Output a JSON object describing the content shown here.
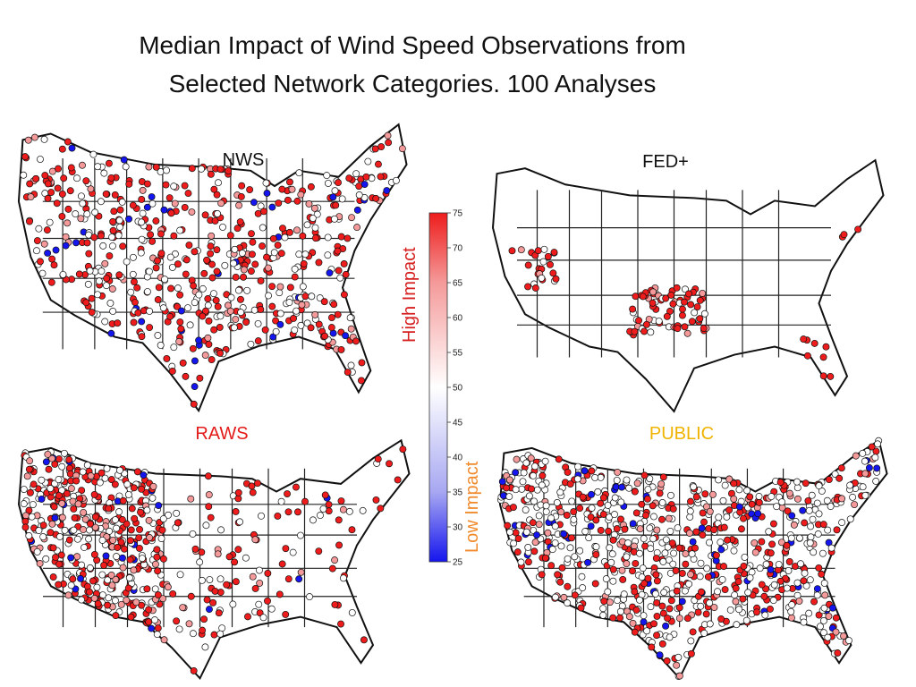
{
  "title": {
    "line1": "Median Impact of  Wind Speed Observations from",
    "line2": "Selected Network Categories. 100 Analyses"
  },
  "colors": {
    "high": "#ee1c1c",
    "mid_high": "#f59a9a",
    "neutral": "#ffffff",
    "mid_low": "#a7a7f2",
    "low": "#1515ee",
    "high_label": "#d62020",
    "low_label": "#f08a2c",
    "public_label": "#f0b400",
    "raws_label": "#e31b1b"
  },
  "chart_data": [
    {
      "type": "scatter",
      "map": "continental-us",
      "panel": "NWS",
      "label": "NWS",
      "station_density": "high",
      "dominant_impact": "high",
      "impact_mix": {
        "high": 0.55,
        "mid_high": 0.1,
        "neutral": 0.3,
        "low": 0.05
      }
    },
    {
      "type": "scatter",
      "map": "continental-us",
      "panel": "FED+",
      "label": "FED+",
      "station_density": "sparse",
      "dominant_impact": "high",
      "impact_mix": {
        "high": 0.65,
        "mid_high": 0.1,
        "neutral": 0.25,
        "low": 0.0
      }
    },
    {
      "type": "scatter",
      "map": "continental-us",
      "panel": "RAWS",
      "label": "RAWS",
      "station_density": "high-west",
      "dominant_impact": "high",
      "impact_mix": {
        "high": 0.5,
        "mid_high": 0.12,
        "neutral": 0.33,
        "low": 0.05
      }
    },
    {
      "type": "scatter",
      "map": "continental-us",
      "panel": "PUBLIC",
      "label": "PUBLIC",
      "station_density": "very-high",
      "dominant_impact": "neutral",
      "impact_mix": {
        "high": 0.35,
        "mid_high": 0.12,
        "neutral": 0.45,
        "low": 0.08
      }
    },
    {
      "type": "heatmap",
      "role": "colorbar",
      "ticks": [
        "75",
        "70",
        "65",
        "60",
        "55",
        "50",
        "45",
        "40",
        "35",
        "30",
        "25"
      ],
      "range": [
        25,
        75
      ],
      "high_label": "High Impact",
      "low_label": "Low Impact"
    }
  ]
}
